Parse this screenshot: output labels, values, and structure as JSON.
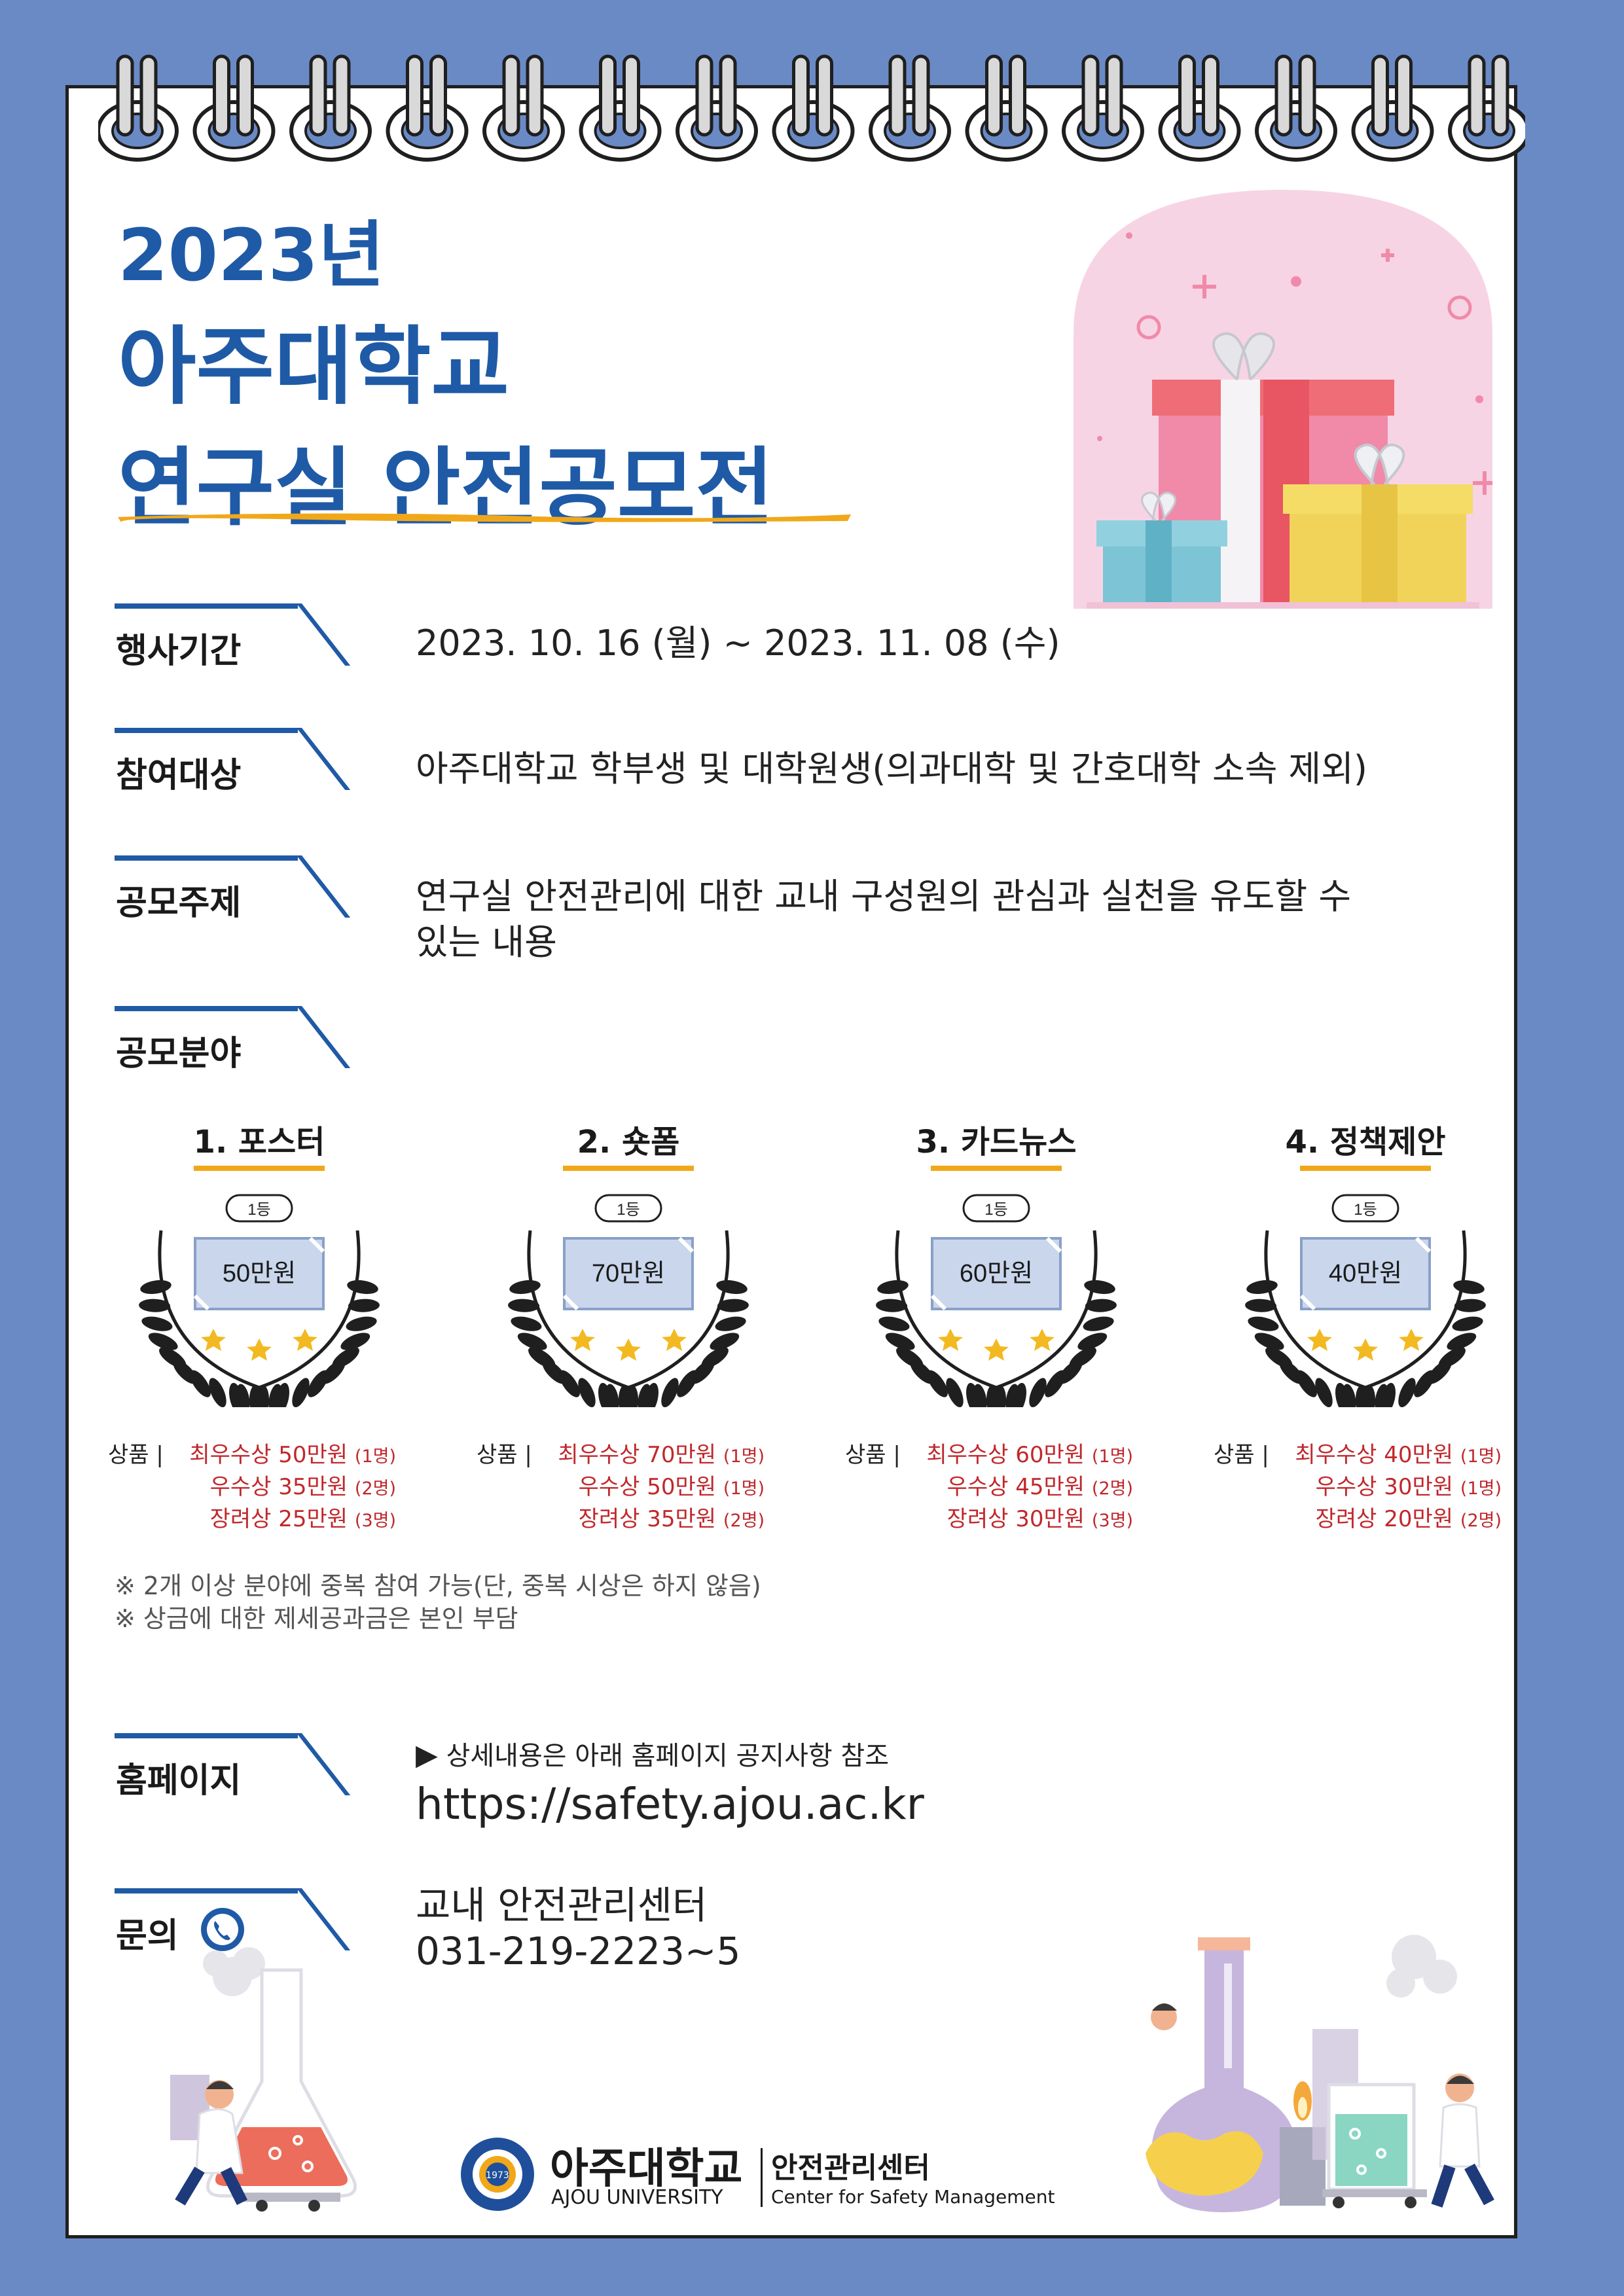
{
  "header": {
    "year": "2023년",
    "university": "아주대학교",
    "event": "연구실 안전공모전"
  },
  "info": {
    "period": {
      "label": "행사기간",
      "value": "2023. 10. 16 (월) ~ 2023. 11. 08 (수)"
    },
    "target": {
      "label": "참여대상",
      "value": "아주대학교 학부생 및 대학원생(의과대학 및 간호대학 소속 제외)"
    },
    "theme": {
      "label": "공모주제",
      "line1": "연구실 안전관리에 대한 교내 구성원의 관심과 실천을 유도할 수",
      "line2": "있는 내용"
    },
    "fields": {
      "label": "공모분야"
    }
  },
  "categories": [
    {
      "title": "1. 포스터",
      "rank": "1등",
      "amount": "50만원",
      "prize_label": "상품  |",
      "p1": "최우수상 50만원",
      "p1n": "(1명)",
      "p2": "우수상 35만원",
      "p2n": "(2명)",
      "p3": "장려상 25만원",
      "p3n": "(3명)"
    },
    {
      "title": "2. 숏폼",
      "rank": "1등",
      "amount": "70만원",
      "prize_label": "상품  |",
      "p1": "최우수상 70만원",
      "p1n": "(1명)",
      "p2": "우수상 50만원",
      "p2n": "(1명)",
      "p3": "장려상 35만원",
      "p3n": "(2명)"
    },
    {
      "title": "3. 카드뉴스",
      "rank": "1등",
      "amount": "60만원",
      "prize_label": "상품  |",
      "p1": "최우수상 60만원",
      "p1n": "(1명)",
      "p2": "우수상 45만원",
      "p2n": "(2명)",
      "p3": "장려상 30만원",
      "p3n": "(3명)"
    },
    {
      "title": "4. 정책제안",
      "rank": "1등",
      "amount": "40만원",
      "prize_label": "상품  |",
      "p1": "최우수상 40만원",
      "p1n": "(1명)",
      "p2": "우수상 30만원",
      "p2n": "(1명)",
      "p3": "장려상 20만원",
      "p3n": "(2명)"
    }
  ],
  "notes": {
    "n1": "※ 2개 이상 분야에 중복 참여 가능(단, 중복 시상은 하지 않음)",
    "n2": "※ 상금에 대한 제세공과금은 본인 부담"
  },
  "homepage": {
    "label": "홈페이지",
    "hint": "상세내용은 아래 홈페이지 공지사항 참조",
    "url": "https://safety.ajou.ac.kr"
  },
  "contact": {
    "label": "문의",
    "org": "교내 안전관리센터",
    "phone": "031-219-2223~5"
  },
  "footer": {
    "univ_kr": "아주대학교",
    "univ_en": "AJOU UNIVERSITY",
    "center_kr": "안전관리센터",
    "center_en": "Center for Safety Management",
    "seal_year": "1973"
  },
  "colors": {
    "background": "#6a8ac6",
    "title_blue": "#1f5aa6",
    "accent_orange": "#f0a81a",
    "prize_red": "#c0282c"
  }
}
